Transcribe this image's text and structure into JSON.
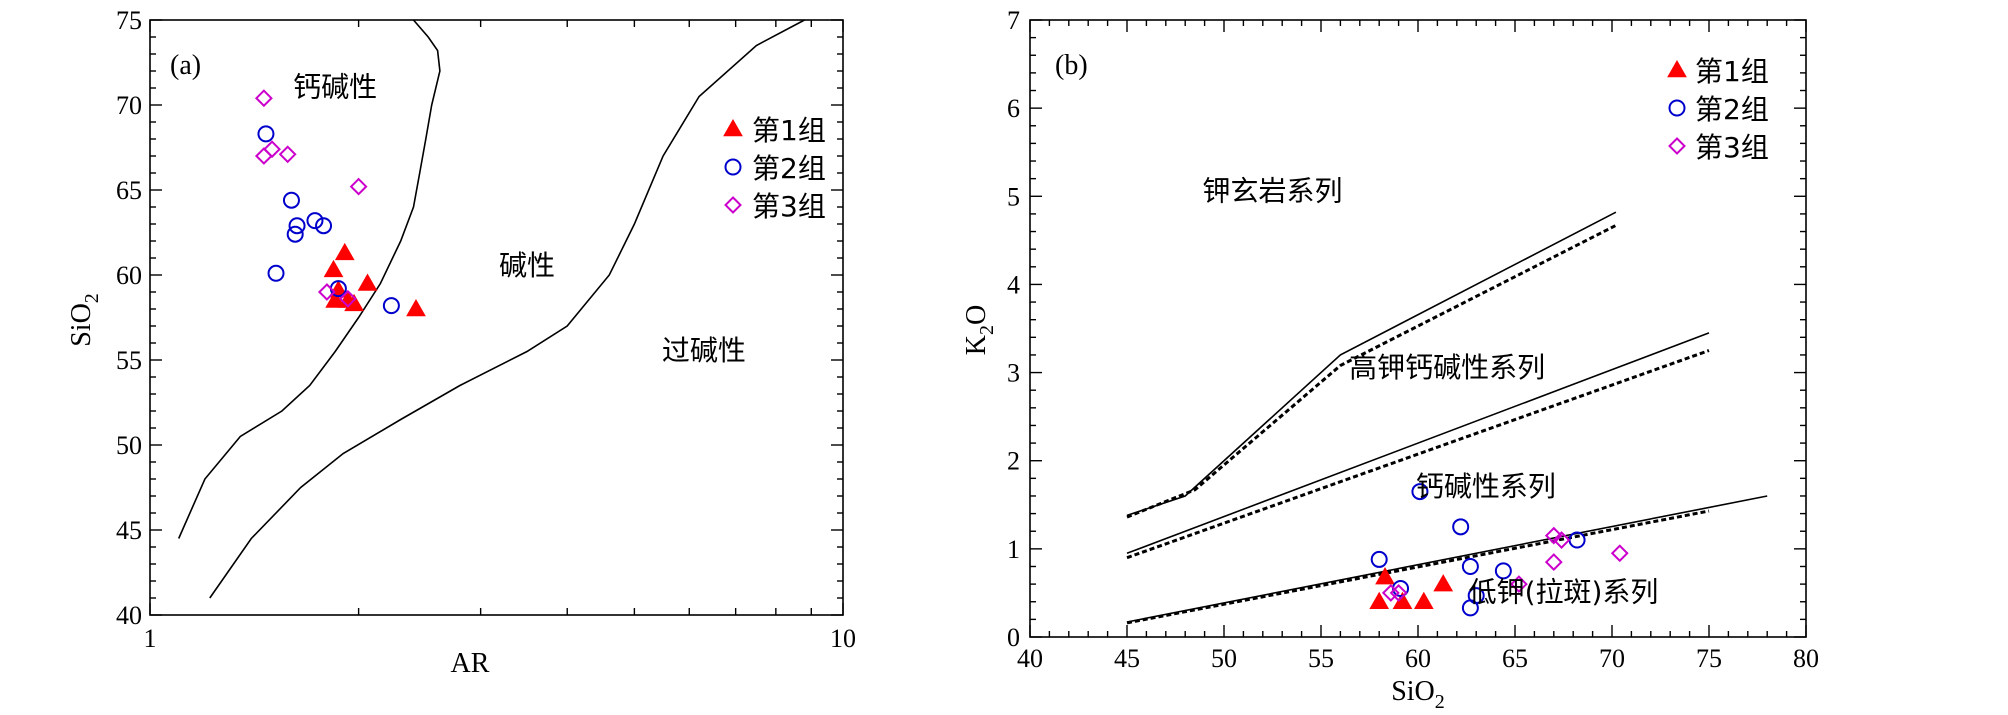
{
  "chart_data": [
    {
      "type": "scatter",
      "panel_label": "(a)",
      "xlabel": "AR",
      "ylabel_main": "SiO",
      "ylabel_sub": "2",
      "xscale": "log",
      "xlim": [
        1,
        10
      ],
      "ylim": [
        40,
        75
      ],
      "x_ticks": [
        1,
        10
      ],
      "x_tick_labels": [
        "1",
        "10"
      ],
      "y_ticks": [
        40,
        45,
        50,
        55,
        60,
        65,
        70,
        75
      ],
      "y_tick_labels": [
        "40",
        "45",
        "50",
        "55",
        "60",
        "65",
        "70",
        "75"
      ],
      "regions": [
        {
          "key": "calc",
          "label": "钙碱性",
          "x": 1.85,
          "y": 70.5
        },
        {
          "key": "alk",
          "label": "碱性",
          "x": 3.5,
          "y": 60
        },
        {
          "key": "peralk",
          "label": "过碱性",
          "x": 6.3,
          "y": 55
        }
      ],
      "boundaries": [
        {
          "name": "calc-alkaline/alkaline",
          "points": [
            [
              1.1,
              44.5
            ],
            [
              1.2,
              48
            ],
            [
              1.35,
              50.5
            ],
            [
              1.55,
              52
            ],
            [
              1.7,
              53.5
            ],
            [
              1.85,
              55.5
            ],
            [
              2.0,
              57.5
            ],
            [
              2.15,
              59.5
            ],
            [
              2.3,
              62
            ],
            [
              2.4,
              64
            ],
            [
              2.45,
              66
            ],
            [
              2.5,
              68
            ],
            [
              2.55,
              70
            ],
            [
              2.62,
              72
            ],
            [
              2.6,
              73.2
            ],
            [
              2.52,
              74
            ],
            [
              2.4,
              75
            ]
          ]
        },
        {
          "name": "alkaline/peralkaline",
          "points": [
            [
              1.22,
              41
            ],
            [
              1.4,
              44.5
            ],
            [
              1.65,
              47.5
            ],
            [
              1.9,
              49.5
            ],
            [
              2.3,
              51.5
            ],
            [
              2.8,
              53.5
            ],
            [
              3.5,
              55.5
            ],
            [
              4.0,
              57
            ],
            [
              4.6,
              60
            ],
            [
              5.0,
              63
            ],
            [
              5.5,
              67
            ],
            [
              6.2,
              70.5
            ],
            [
              7.5,
              73.5
            ],
            [
              8.8,
              75
            ]
          ]
        }
      ],
      "legend": [
        {
          "label": "第1组",
          "marker": "filled-triangle",
          "color": "#ff0000"
        },
        {
          "label": "第2组",
          "marker": "open-circle",
          "color": "#0000cc"
        },
        {
          "label": "第3组",
          "marker": "open-diamond",
          "color": "#cc00cc"
        }
      ],
      "series": [
        {
          "name": "第1组",
          "points": [
            [
              1.91,
              61.3
            ],
            [
              1.84,
              60.3
            ],
            [
              2.06,
              59.5
            ],
            [
              1.87,
              59.1
            ],
            [
              1.85,
              58.5
            ],
            [
              1.93,
              58.5
            ],
            [
              1.97,
              58.3
            ],
            [
              2.42,
              58.0
            ]
          ]
        },
        {
          "name": "第2组",
          "points": [
            [
              1.47,
              68.3
            ],
            [
              1.6,
              64.4
            ],
            [
              1.63,
              62.9
            ],
            [
              1.62,
              62.4
            ],
            [
              1.73,
              63.2
            ],
            [
              1.78,
              62.9
            ],
            [
              1.52,
              60.1
            ],
            [
              1.87,
              59.2
            ],
            [
              2.23,
              58.2
            ]
          ]
        },
        {
          "name": "第3组",
          "points": [
            [
              1.46,
              70.4
            ],
            [
              1.5,
              67.4
            ],
            [
              1.46,
              67.0
            ],
            [
              1.58,
              67.1
            ],
            [
              2.0,
              65.2
            ],
            [
              1.8,
              59.0
            ],
            [
              1.93,
              58.6
            ]
          ]
        }
      ]
    },
    {
      "type": "scatter",
      "panel_label": "(b)",
      "xlabel_main": "SiO",
      "xlabel_sub": "2",
      "ylabel_main": "K",
      "ylabel_sub": "2",
      "ylabel_tail": "O",
      "xlim": [
        40,
        80
      ],
      "ylim": [
        0,
        7
      ],
      "x_ticks": [
        40,
        45,
        50,
        55,
        60,
        65,
        70,
        75,
        80
      ],
      "x_tick_labels": [
        "40",
        "45",
        "50",
        "55",
        "60",
        "65",
        "70",
        "75",
        "80"
      ],
      "y_ticks": [
        0,
        1,
        2,
        3,
        4,
        5,
        6,
        7
      ],
      "y_tick_labels": [
        "0",
        "1",
        "2",
        "3",
        "4",
        "5",
        "6",
        "7"
      ],
      "regions": [
        {
          "key": "shosh",
          "label": "钾玄岩系列",
          "x": 52.5,
          "y": 4.95
        },
        {
          "key": "hk",
          "label": "高钾钙碱性系列",
          "x": 61.5,
          "y": 2.95
        },
        {
          "key": "ck",
          "label": "钙碱性系列",
          "x": 63.5,
          "y": 1.6
        },
        {
          "key": "lk",
          "label": "低钾(拉斑)系列",
          "x": 67.5,
          "y": 0.4
        }
      ],
      "boundaries": [
        {
          "name": "shoshonite-solid",
          "style": "solid",
          "points": [
            [
              45,
              1.38
            ],
            [
              48,
              1.6
            ],
            [
              56,
              3.2
            ],
            [
              70.2,
              4.82
            ]
          ]
        },
        {
          "name": "shoshonite-dashed",
          "style": "dashed",
          "points": [
            [
              45,
              1.36
            ],
            [
              48.5,
              1.67
            ],
            [
              56,
              3.08
            ],
            [
              70.2,
              4.67
            ]
          ]
        },
        {
          "name": "high-k-solid",
          "style": "solid",
          "points": [
            [
              45,
              0.95
            ],
            [
              75,
              3.45
            ]
          ]
        },
        {
          "name": "high-k-dashed",
          "style": "dashed",
          "points": [
            [
              45,
              0.9
            ],
            [
              75,
              3.25
            ]
          ]
        },
        {
          "name": "low-k-solid",
          "style": "solid",
          "points": [
            [
              45,
              0.17
            ],
            [
              78,
              1.6
            ]
          ]
        },
        {
          "name": "low-k-dashed",
          "style": "dashed",
          "points": [
            [
              45,
              0.16
            ],
            [
              75,
              1.43
            ]
          ]
        }
      ],
      "legend": [
        {
          "label": "第1组",
          "marker": "filled-triangle",
          "color": "#ff0000"
        },
        {
          "label": "第2组",
          "marker": "open-circle",
          "color": "#0000cc"
        },
        {
          "label": "第3组",
          "marker": "open-diamond",
          "color": "#cc00cc"
        }
      ],
      "series": [
        {
          "name": "第1组",
          "points": [
            [
              58.3,
              0.68
            ],
            [
              58,
              0.4
            ],
            [
              59.2,
              0.4
            ],
            [
              60.3,
              0.4
            ],
            [
              61.3,
              0.6
            ]
          ]
        },
        {
          "name": "第2组",
          "points": [
            [
              58,
              0.88
            ],
            [
              60.1,
              1.65
            ],
            [
              62.2,
              1.25
            ],
            [
              62.7,
              0.8
            ],
            [
              63,
              0.47
            ],
            [
              62.7,
              0.33
            ],
            [
              64.4,
              0.75
            ],
            [
              68.2,
              1.1
            ],
            [
              59.1,
              0.55
            ]
          ]
        },
        {
          "name": "第3组",
          "points": [
            [
              67,
              1.15
            ],
            [
              67.4,
              1.1
            ],
            [
              70.4,
              0.95
            ],
            [
              67,
              0.85
            ],
            [
              65.2,
              0.6
            ],
            [
              59,
              0.5
            ],
            [
              58.6,
              0.5
            ]
          ]
        }
      ]
    }
  ]
}
